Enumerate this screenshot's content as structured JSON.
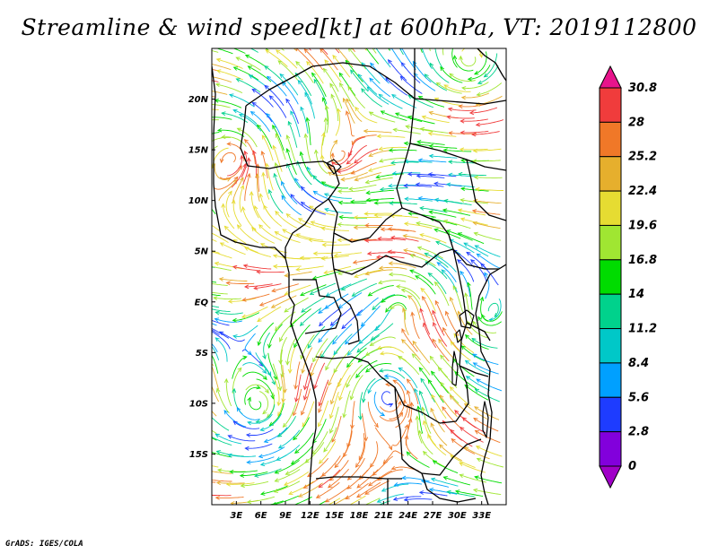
{
  "title": "Streamline & wind speed[kt] at 600hPa, VT: 2019112800",
  "footer": "GrADS: IGES/COLA",
  "map": {
    "lon_range": [
      0,
      36
    ],
    "lat_range": [
      -20,
      25
    ],
    "lat_ticks": [
      "20N",
      "15N",
      "10N",
      "5N",
      "EQ",
      "5S",
      "10S",
      "15S"
    ],
    "lat_tick_values": [
      20,
      15,
      10,
      5,
      0,
      -5,
      -10,
      -15
    ],
    "lon_ticks": [
      "3E",
      "6E",
      "9E",
      "12E",
      "15E",
      "18E",
      "21E",
      "24E",
      "27E",
      "30E",
      "33E"
    ],
    "lon_tick_values": [
      3,
      6,
      9,
      12,
      15,
      18,
      21,
      24,
      27,
      30,
      33
    ]
  },
  "colorbar": {
    "unit": "kt",
    "labels": [
      "30.8",
      "28",
      "25.2",
      "22.4",
      "19.6",
      "16.8",
      "14",
      "11.2",
      "8.4",
      "5.6",
      "2.8",
      "0"
    ],
    "colors": [
      "#e8148c",
      "#f03c3c",
      "#f07828",
      "#e6af2d",
      "#e6dc32",
      "#a0e632",
      "#00dc00",
      "#00d28c",
      "#00c8c8",
      "#00a0ff",
      "#1e3cff",
      "#8200dc",
      "#a000c8"
    ]
  }
}
